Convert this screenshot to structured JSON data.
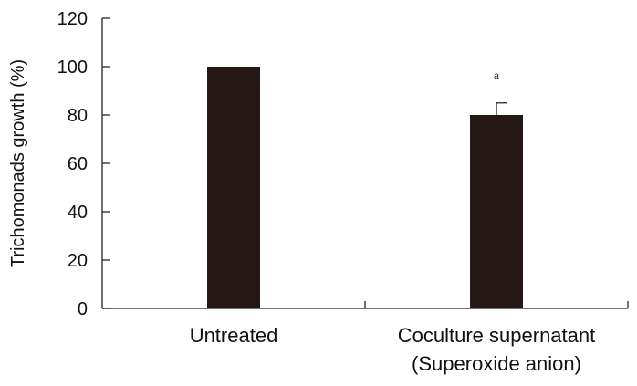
{
  "chart_data": {
    "type": "bar",
    "ylabel": "Trichomonads growth (%)",
    "xlabel": "",
    "ylim": [
      0,
      120
    ],
    "yticks": [
      0,
      20,
      40,
      60,
      80,
      100,
      120
    ],
    "grid": false,
    "bar_color": "#231815",
    "categories": [
      {
        "lines": [
          "Untreated"
        ]
      },
      {
        "lines": [
          "Coculture supernatant",
          "(Superoxide anion)"
        ]
      }
    ],
    "values": [
      100,
      80
    ],
    "errors": [
      0,
      5
    ],
    "annotations": [
      "",
      "a"
    ]
  }
}
